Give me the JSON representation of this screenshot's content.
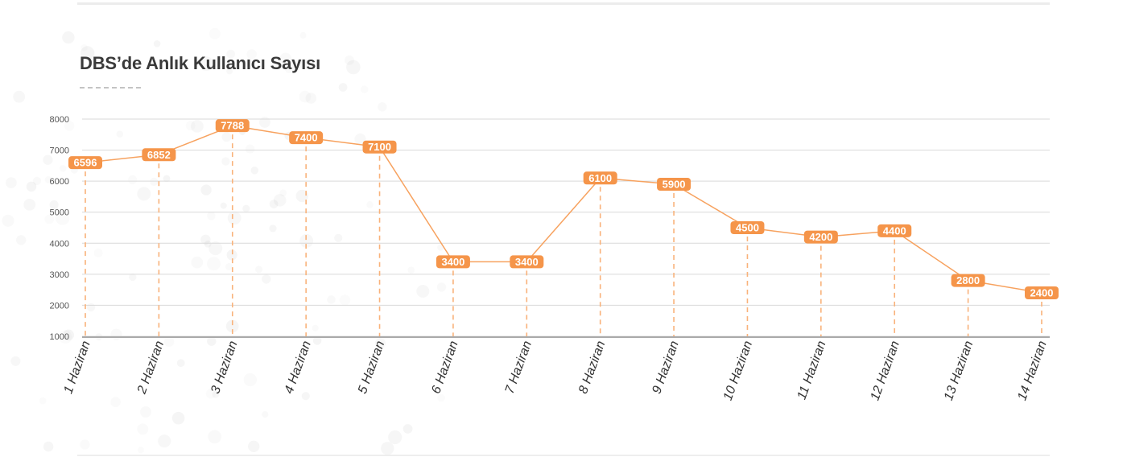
{
  "chart_data": {
    "type": "line",
    "title": "DBS’de Anlık Kullanıcı Sayısı",
    "xlabel": "",
    "ylabel": "",
    "categories": [
      "1 Haziran",
      "2 Haziran",
      "3 Haziran",
      "4 Haziran",
      "5 Haziran",
      "6 Haziran",
      "7 Haziran",
      "8 Haziran",
      "9 Haziran",
      "10 Haziran",
      "11 Haziran",
      "12 Haziran",
      "13 Haziran",
      "14 Haziran"
    ],
    "series": [
      {
        "values": [
          6596,
          6852,
          7788,
          7400,
          7100,
          3400,
          3400,
          6100,
          5900,
          4500,
          4200,
          4400,
          2800,
          2400
        ]
      }
    ],
    "ylim": [
      1000,
      8000
    ],
    "yticks": [
      1000,
      2000,
      3000,
      4000,
      5000,
      6000,
      7000,
      8000
    ],
    "grid": true,
    "legend": "none",
    "colors": {
      "line": "#f7a25f",
      "label_bg": "#f5954a",
      "drop_line": "#f9b27a",
      "grid": "#d9d9d9",
      "axis": "#aaaaaa"
    }
  }
}
